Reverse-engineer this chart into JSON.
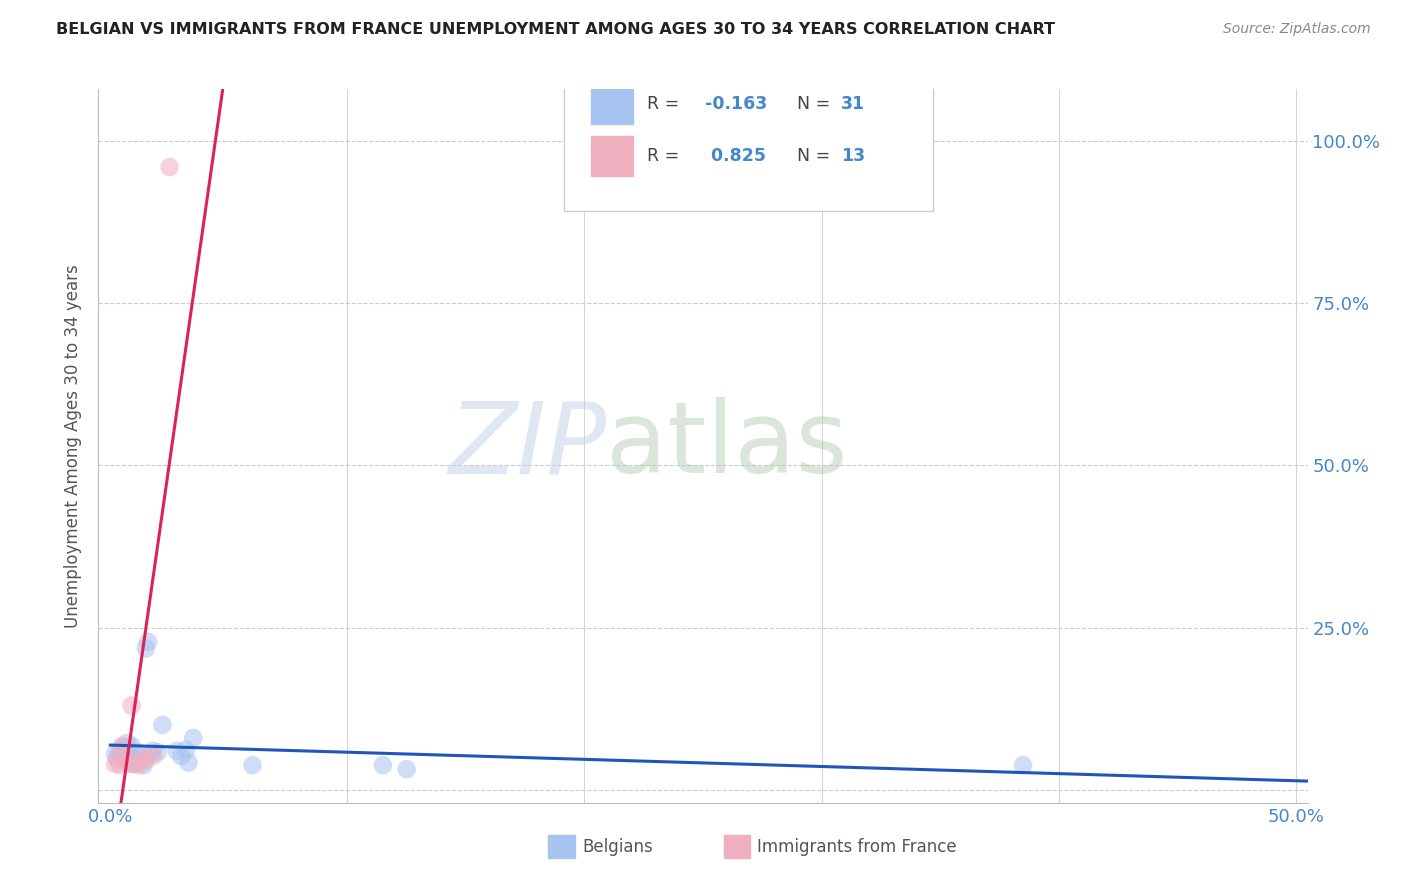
{
  "title": "BELGIAN VS IMMIGRANTS FROM FRANCE UNEMPLOYMENT AMONG AGES 30 TO 34 YEARS CORRELATION CHART",
  "source": "Source: ZipAtlas.com",
  "ylabel": "Unemployment Among Ages 30 to 34 years",
  "xlim": [
    -0.005,
    0.505
  ],
  "ylim": [
    -0.02,
    1.08
  ],
  "xticks": [
    0.0,
    0.1,
    0.2,
    0.3,
    0.4,
    0.5
  ],
  "xticklabels": [
    "0.0%",
    "",
    "",
    "",
    "",
    "50.0%"
  ],
  "yticks": [
    0.0,
    0.25,
    0.5,
    0.75,
    1.0
  ],
  "yticklabels_right": [
    "",
    "25.0%",
    "50.0%",
    "75.0%",
    "100.0%"
  ],
  "belgians_x": [
    0.002,
    0.003,
    0.004,
    0.005,
    0.005,
    0.006,
    0.007,
    0.007,
    0.008,
    0.009,
    0.01,
    0.01,
    0.011,
    0.012,
    0.013,
    0.014,
    0.015,
    0.016,
    0.017,
    0.018,
    0.02,
    0.022,
    0.028,
    0.03,
    0.032,
    0.033,
    0.035,
    0.06,
    0.115,
    0.125,
    0.385
  ],
  "belgians_y": [
    0.055,
    0.048,
    0.06,
    0.065,
    0.05,
    0.058,
    0.062,
    0.072,
    0.045,
    0.068,
    0.048,
    0.04,
    0.058,
    0.042,
    0.05,
    0.038,
    0.218,
    0.228,
    0.055,
    0.06,
    0.058,
    0.1,
    0.06,
    0.052,
    0.062,
    0.042,
    0.08,
    0.038,
    0.038,
    0.032,
    0.038
  ],
  "immigrants_x": [
    0.002,
    0.003,
    0.004,
    0.005,
    0.006,
    0.008,
    0.009,
    0.01,
    0.012,
    0.014,
    0.015,
    0.018,
    0.025
  ],
  "immigrants_y": [
    0.04,
    0.048,
    0.038,
    0.068,
    0.05,
    0.04,
    0.13,
    0.04,
    0.038,
    0.048,
    0.045,
    0.052,
    0.96
  ],
  "belgian_color": "#a8c4f0",
  "immigrant_color": "#f0b0c0",
  "belgian_line_color": "#2255bb",
  "immigrant_line_color": "#dd2255",
  "R_belgian": -0.163,
  "N_belgian": 31,
  "R_immigrant": 0.825,
  "N_immigrant": 13,
  "watermark_zip": "ZIP",
  "watermark_atlas": "atlas",
  "grid_color": "#cccccc",
  "title_color": "#222222",
  "axis_label_color": "#555555",
  "tick_label_color": "#4488cc",
  "source_color": "#888888",
  "scatter_size": 180,
  "scatter_alpha": 0.55,
  "line_width": 2.2
}
